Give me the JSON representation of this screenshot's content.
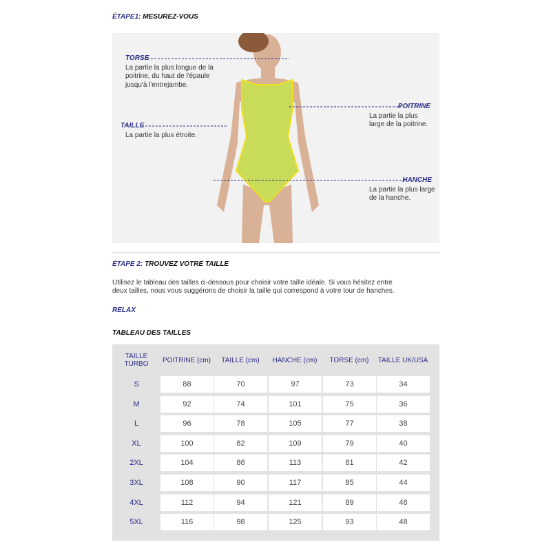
{
  "step1": {
    "label": "ÉTAPE1:",
    "title": "MESUREZ-VOUS"
  },
  "annotations": [
    {
      "title": "TORSE",
      "lines": [
        "La partie la plus longue de la",
        "poitrine, du haut de l'épaule",
        "jusqu'à l'entrejambe."
      ]
    },
    {
      "title": "POITRINE",
      "lines": [
        "La partie la plus",
        "large de la poitrine."
      ]
    },
    {
      "title": "TAILLE",
      "lines": [
        "La partie la plus étroite."
      ]
    },
    {
      "title": "HANCHE",
      "lines": [
        "La partie la plus large",
        "de la hanche."
      ]
    }
  ],
  "step2": {
    "label": "ÉTAPE 2:",
    "title": "TROUVEZ VOTRE TAILLE",
    "text": [
      "Utilisez le tableau des tailles ci-dessous pour choisir votre taille idéale. Si vous hésitez entre",
      "deux tailles, nous vous suggérons de choisir la taille qui correspond à votre tour de hanches."
    ]
  },
  "relax": "RELAX",
  "table": {
    "title": "TABLEAU DES TAILLES",
    "headers": [
      "TAILLE TURBO",
      "POITRINE (cm)",
      "TAILLE (cm)",
      "HANCHE (cm)",
      "TORSE (cm)",
      "TAILLE UK/USA"
    ],
    "rows": [
      [
        "S",
        88,
        70,
        97,
        73,
        34
      ],
      [
        "M",
        92,
        74,
        101,
        75,
        36
      ],
      [
        "L",
        96,
        78,
        105,
        77,
        38
      ],
      [
        "XL",
        100,
        82,
        109,
        79,
        40
      ],
      [
        "2XL",
        104,
        86,
        113,
        81,
        42
      ],
      [
        "3XL",
        108,
        90,
        117,
        85,
        44
      ],
      [
        "4XL",
        112,
        94,
        121,
        89,
        46
      ],
      [
        "5XL",
        116,
        98,
        125,
        93,
        48
      ]
    ]
  }
}
